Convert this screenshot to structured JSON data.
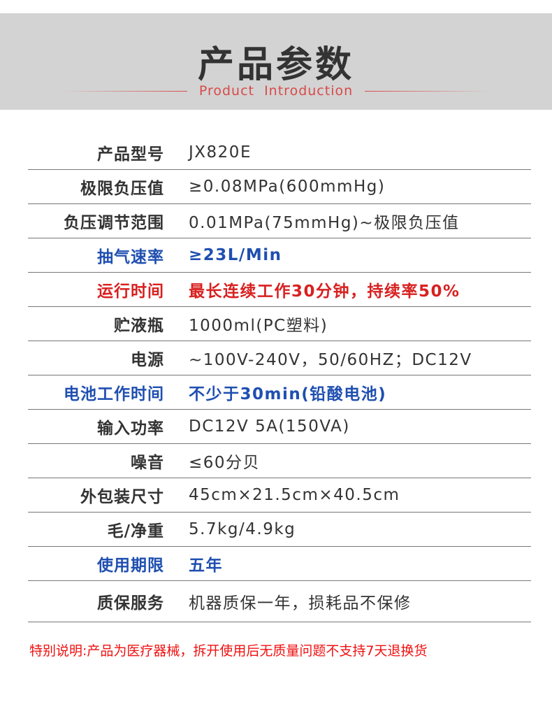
{
  "header": {
    "title": "产品参数",
    "subtitle": "Product  Introduction"
  },
  "colors": {
    "band": "#d3d3d3",
    "accent_red": "#d82020",
    "accent_blue": "#1f4fb0"
  },
  "specs": [
    {
      "label": "产品型号",
      "value": "JX820E",
      "style": "normal"
    },
    {
      "label": "极限负压值",
      "value": "≥0.08MPa(600mmHg)",
      "style": "normal"
    },
    {
      "label": "负压调节范围",
      "value": "0.01MPa(75mmHg)~极限负压值",
      "style": "normal"
    },
    {
      "label": "抽气速率",
      "value": "≥23L/Min",
      "style": "blue"
    },
    {
      "label": "运行时间",
      "value": "最长连续工作30分钟，持续率50%",
      "style": "red"
    },
    {
      "label": "贮液瓶",
      "value": "1000ml(PC塑料)",
      "style": "normal"
    },
    {
      "label": "电源",
      "value": "~100V-240V，50/60HZ；DC12V",
      "style": "normal"
    },
    {
      "label": "电池工作时间",
      "value": "不少于30min(铅酸电池)",
      "style": "blue"
    },
    {
      "label": "输入功率",
      "value": "DC12V 5A(150VA)",
      "style": "normal"
    },
    {
      "label": "噪音",
      "value": "≤60分贝",
      "style": "normal"
    },
    {
      "label": "外包装尺寸",
      "value": "45cm×21.5cm×40.5cm",
      "style": "normal"
    },
    {
      "label": "毛/净重",
      "value": "5.7kg/4.9kg",
      "style": "normal"
    },
    {
      "label": "使用期限",
      "value": "五年",
      "style": "blue"
    },
    {
      "label": "质保服务",
      "value": "机器质保一年，损耗品不保修",
      "style": "normal"
    }
  ],
  "note": "特别说明:产品为医疗器械，拆开使用后无质量问题不支持7天退换货"
}
